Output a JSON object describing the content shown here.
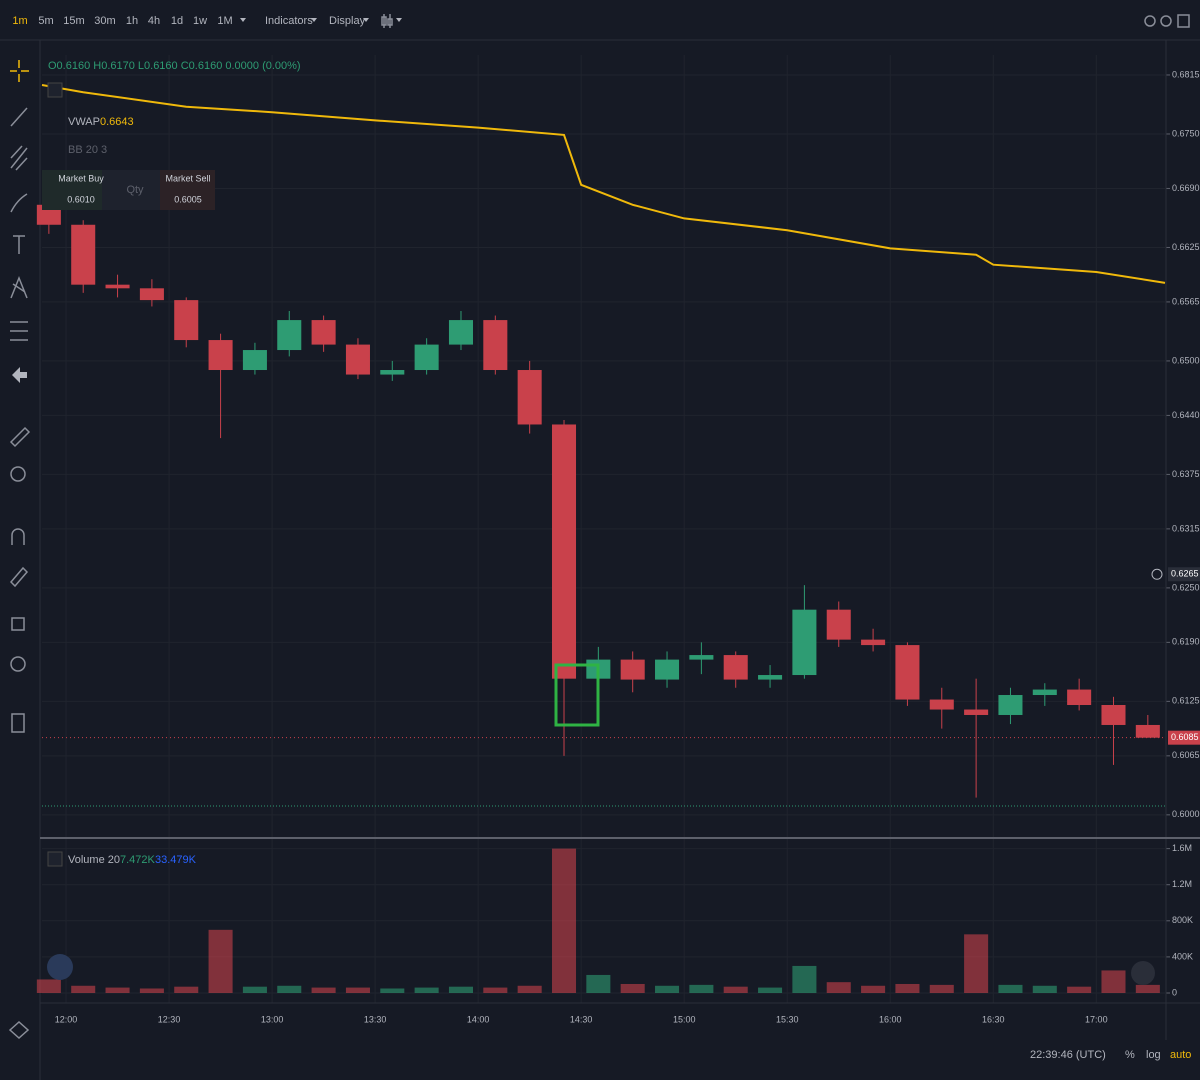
{
  "toolbar": {
    "timeframes": [
      "1m",
      "5m",
      "15m",
      "30m",
      "1h",
      "4h",
      "1d",
      "1w",
      "1M"
    ],
    "indicators": "Indicators",
    "display": "Display"
  },
  "legend": {
    "ohlc": "O0.6160 H0.6170 L0.6160 C0.6160 0.0000 (0.00%)",
    "vwap_value": "0.6643",
    "bb": "BB 20 3",
    "volume_label": "Volume 20",
    "volume_value": "7.472K",
    "volume_ma": "33.479K"
  },
  "trade_panel": {
    "buy_label": "Market Buy",
    "buy_price": "0.6010",
    "qty": "Qty",
    "sell_label": "Market Sell",
    "sell_price": "0.6005"
  },
  "status": {
    "clock": "22:39:46 (UTC)",
    "percent": "%",
    "log": "log",
    "auto": "auto"
  },
  "chart_data": [
    {
      "type": "candlestick",
      "x": [
        "11:55",
        "12:05",
        "12:15",
        "12:25",
        "12:35",
        "12:45",
        "12:55",
        "13:05",
        "13:15",
        "13:25",
        "13:35",
        "13:45",
        "13:55",
        "14:05",
        "14:15",
        "14:25",
        "14:35",
        "14:45",
        "14:55",
        "15:05",
        "15:15",
        "15:25",
        "15:35",
        "15:45",
        "15:55",
        "16:05",
        "16:15",
        "16:25",
        "16:35",
        "16:45",
        "16:55",
        "17:05",
        "17:15"
      ],
      "open": [
        0.6672,
        0.665,
        0.6584,
        0.658,
        0.6567,
        0.6523,
        0.649,
        0.6512,
        0.6545,
        0.6518,
        0.6485,
        0.649,
        0.6518,
        0.6545,
        0.649,
        0.643,
        0.615,
        0.6171,
        0.6149,
        0.6171,
        0.6176,
        0.6149,
        0.6154,
        0.6226,
        0.6193,
        0.6187,
        0.6127,
        0.6116,
        0.611,
        0.6132,
        0.6138,
        0.6121,
        0.6099
      ],
      "high": [
        0.668,
        0.6655,
        0.6595,
        0.659,
        0.657,
        0.653,
        0.652,
        0.6555,
        0.655,
        0.6525,
        0.65,
        0.6525,
        0.6555,
        0.655,
        0.65,
        0.6435,
        0.6185,
        0.618,
        0.618,
        0.619,
        0.618,
        0.6165,
        0.6253,
        0.6235,
        0.6205,
        0.619,
        0.614,
        0.615,
        0.614,
        0.6145,
        0.615,
        0.613,
        0.611
      ],
      "low": [
        0.664,
        0.6575,
        0.657,
        0.656,
        0.6515,
        0.6415,
        0.6485,
        0.6505,
        0.651,
        0.648,
        0.6478,
        0.6485,
        0.6512,
        0.6485,
        0.642,
        0.6065,
        0.614,
        0.6135,
        0.614,
        0.6155,
        0.614,
        0.614,
        0.615,
        0.6185,
        0.618,
        0.612,
        0.6095,
        0.6019,
        0.61,
        0.612,
        0.6115,
        0.6055,
        0.6085
      ],
      "close": [
        0.665,
        0.6584,
        0.658,
        0.6567,
        0.6523,
        0.649,
        0.6512,
        0.6545,
        0.6518,
        0.6485,
        0.649,
        0.6518,
        0.6545,
        0.649,
        0.643,
        0.615,
        0.6171,
        0.6149,
        0.6171,
        0.6176,
        0.6149,
        0.6154,
        0.6226,
        0.6193,
        0.6187,
        0.6127,
        0.6116,
        0.611,
        0.6132,
        0.6138,
        0.6121,
        0.6099,
        0.6085
      ],
      "up_color": "#2e9c73",
      "down_color": "#c9414b",
      "xlim": [
        "11:53",
        "17:20"
      ],
      "xticks": [
        "12:00",
        "12:30",
        "13:00",
        "13:30",
        "14:00",
        "14:30",
        "15:00",
        "15:30",
        "16:00",
        "16:30",
        "17:00"
      ],
      "ylim": [
        0.598,
        0.6837
      ],
      "yticks": [
        {
          "value": 0.6815,
          "label": "0.6815"
        },
        {
          "value": 0.675,
          "label": "0.6750"
        },
        {
          "value": 0.669,
          "label": "0.6690"
        },
        {
          "value": 0.6625,
          "label": "0.6625"
        },
        {
          "value": 0.6565,
          "label": "0.6565"
        },
        {
          "value": 0.65,
          "label": "0.6500"
        },
        {
          "value": 0.644,
          "label": "0.6440"
        },
        {
          "value": 0.6375,
          "label": "0.6375"
        },
        {
          "value": 0.6315,
          "label": "0.6315"
        },
        {
          "value": 0.625,
          "label": "0.6250"
        },
        {
          "value": 0.619,
          "label": "0.6190"
        },
        {
          "value": 0.6125,
          "label": "0.6125"
        },
        {
          "value": 0.6065,
          "label": "0.6065"
        },
        {
          "value": 0.6,
          "label": "0.6000"
        }
      ],
      "grid": true,
      "last_price": 0.6085,
      "crosshair_price": 0.6265,
      "overlay": {
        "name": "VWAP",
        "color": "#f0b90b",
        "x": [
          "11:53",
          "12:05",
          "12:35",
          "13:00",
          "13:30",
          "14:00",
          "14:25",
          "14:30",
          "14:45",
          "15:00",
          "15:30",
          "16:00",
          "16:25",
          "16:30",
          "17:00",
          "17:20"
        ],
        "values": [
          0.6804,
          0.6796,
          0.678,
          0.6774,
          0.6765,
          0.6757,
          0.6749,
          0.6694,
          0.6672,
          0.6657,
          0.6644,
          0.6624,
          0.6617,
          0.6606,
          0.6598,
          0.6586
        ]
      }
    },
    {
      "type": "volume",
      "x": [
        "11:55",
        "12:05",
        "12:15",
        "12:25",
        "12:35",
        "12:45",
        "12:55",
        "13:05",
        "13:15",
        "13:25",
        "13:35",
        "13:45",
        "13:55",
        "14:05",
        "14:15",
        "14:25",
        "14:35",
        "14:45",
        "14:55",
        "15:05",
        "15:15",
        "15:25",
        "15:35",
        "15:45",
        "15:55",
        "16:05",
        "16:15",
        "16:25",
        "16:35",
        "16:45",
        "16:55",
        "17:05",
        "17:15"
      ],
      "values": [
        150000,
        80000,
        60000,
        50000,
        70000,
        700000,
        70000,
        80000,
        60000,
        60000,
        50000,
        60000,
        70000,
        60000,
        80000,
        1600000,
        200000,
        100000,
        80000,
        90000,
        70000,
        60000,
        300000,
        120000,
        80000,
        100000,
        90000,
        650000,
        90000,
        80000,
        70000,
        250000,
        90000
      ],
      "ylim": [
        0,
        1640000
      ],
      "yticks": [
        0,
        {
          "value": 400000,
          "label": "400K"
        },
        {
          "value": 800000,
          "label": "800K"
        },
        {
          "value": 1200000,
          "label": "1.2M"
        },
        {
          "value": 1600000,
          "label": "1.6M"
        }
      ],
      "grid": true
    }
  ]
}
